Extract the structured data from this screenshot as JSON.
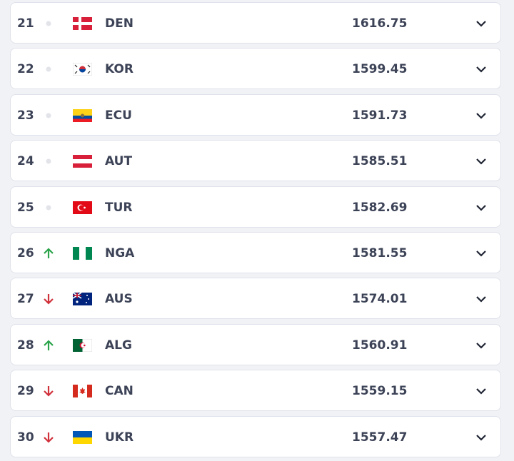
{
  "table": {
    "rows": [
      {
        "rank": 21,
        "team": "DEN",
        "points": 1616.75
      },
      {
        "rank": 22,
        "team": "KOR",
        "points": 1599.45
      },
      {
        "rank": 23,
        "team": "ECU",
        "points": 1591.73
      },
      {
        "rank": 24,
        "team": "AUT",
        "points": 1585.51
      },
      {
        "rank": 25,
        "team": "TUR",
        "points": 1582.69
      },
      {
        "rank": 26,
        "team": "NGA",
        "points": 1581.55
      },
      {
        "rank": 27,
        "team": "AUS",
        "points": 1574.01
      },
      {
        "rank": 28,
        "team": "ALG",
        "points": 1560.91
      },
      {
        "rank": 29,
        "team": "CAN",
        "points": 1559.15
      },
      {
        "rank": 30,
        "team": "UKR",
        "points": 1557.47
      }
    ]
  }
}
